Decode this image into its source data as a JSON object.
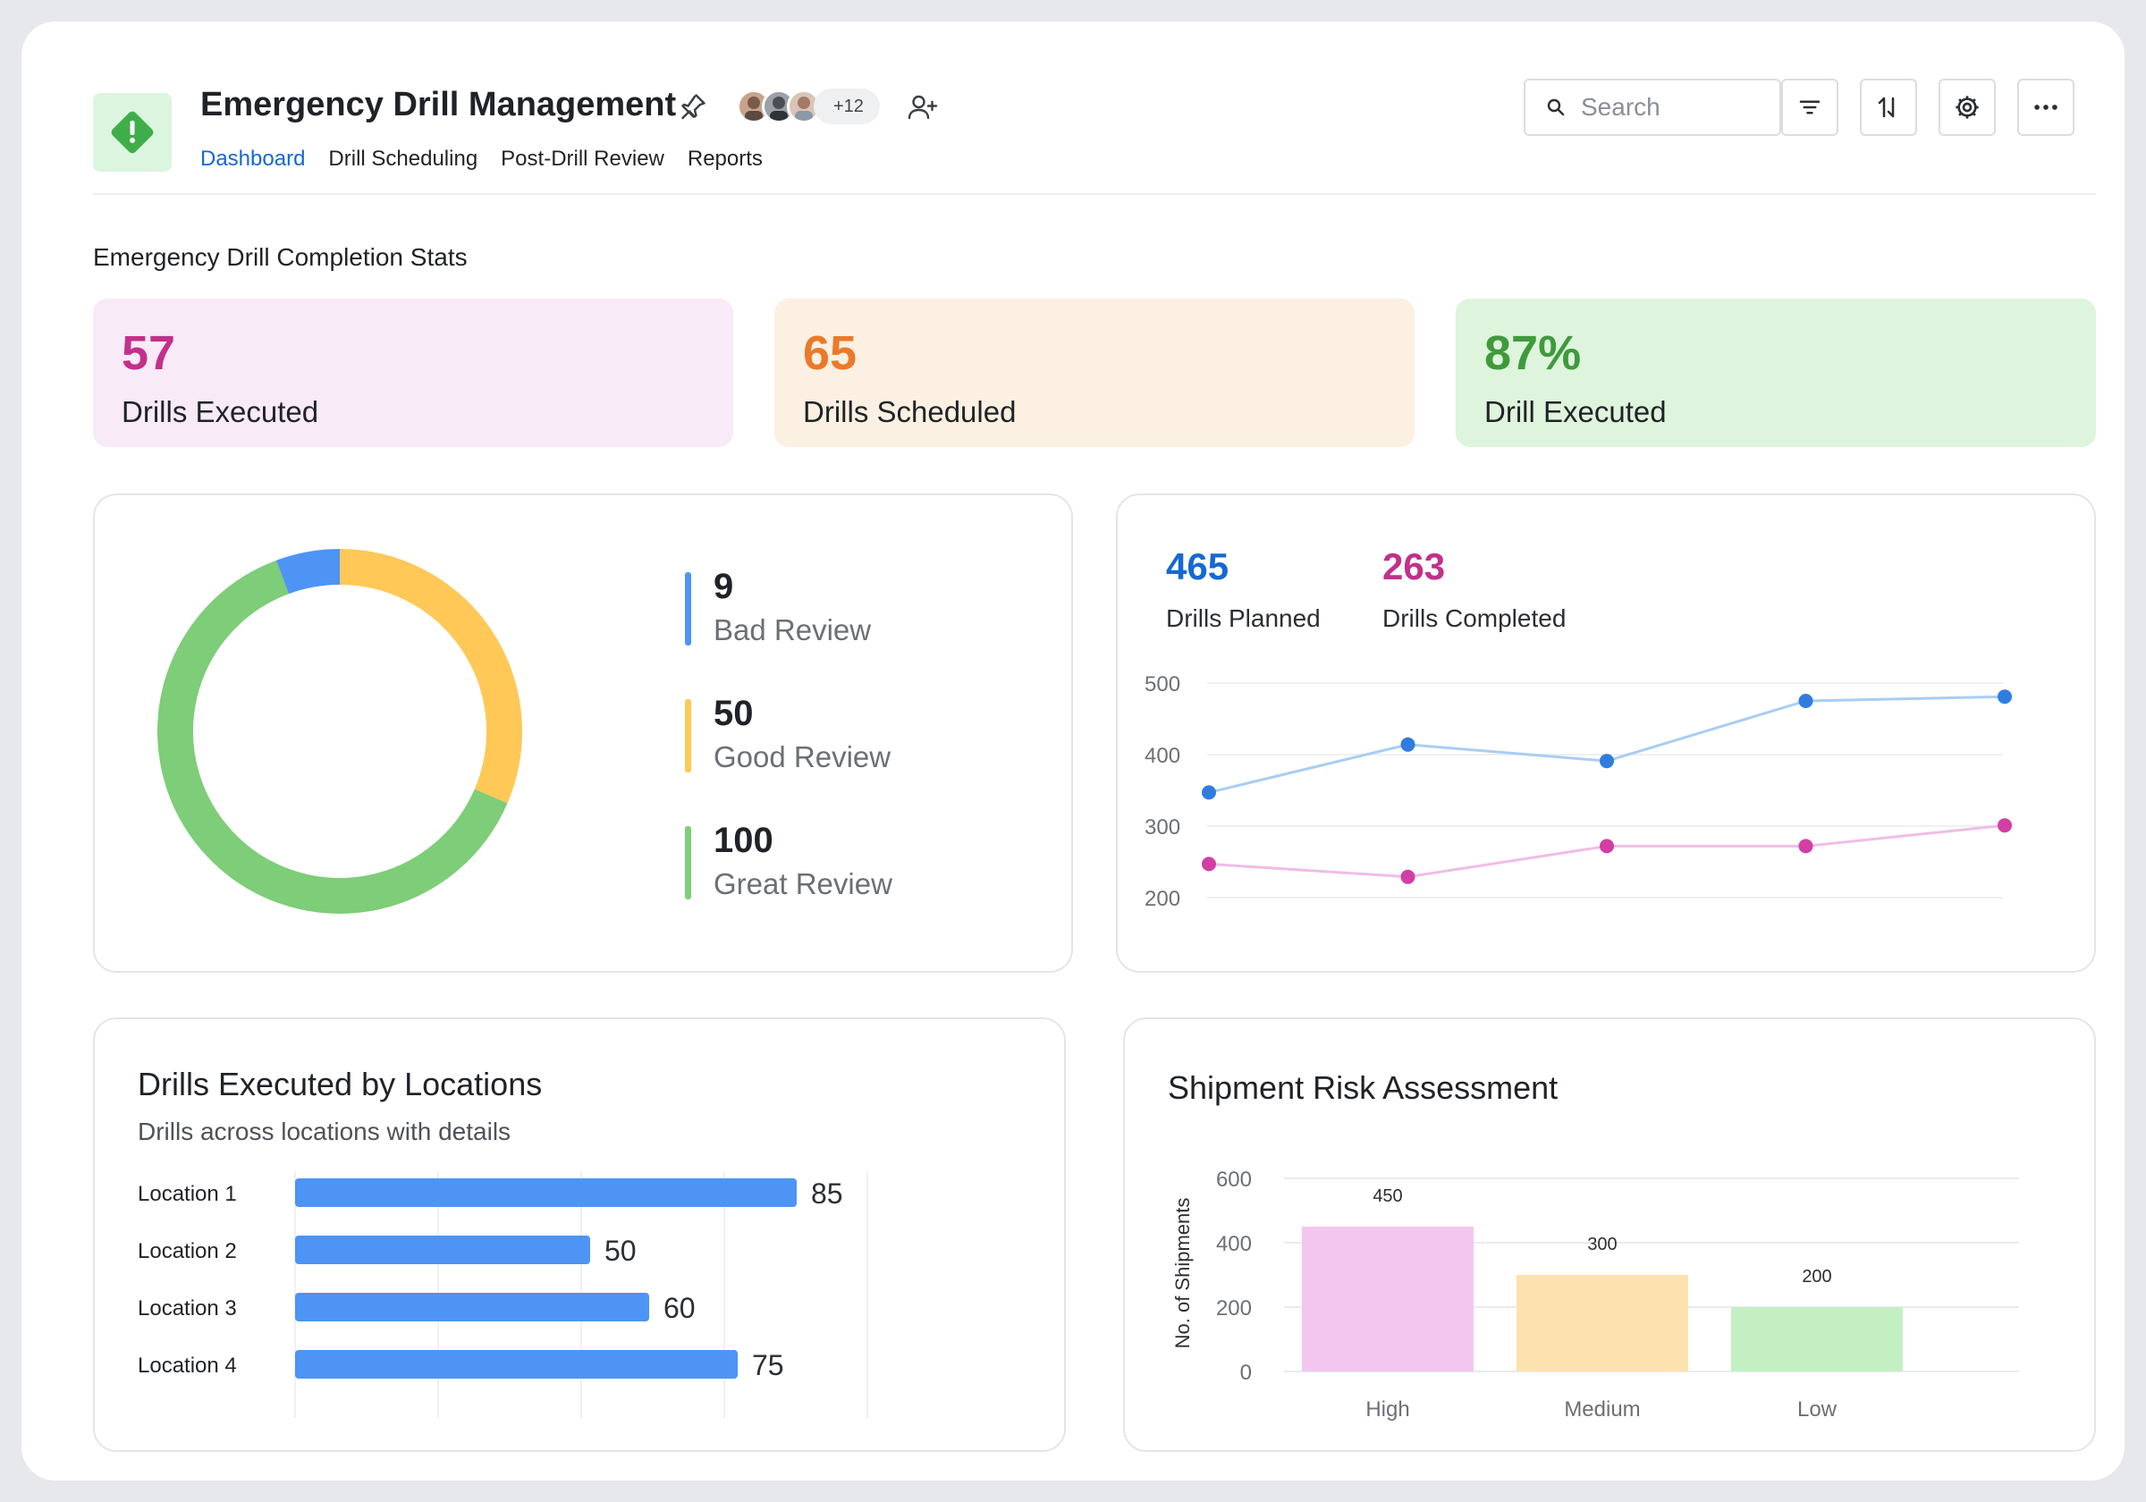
{
  "app": {
    "title": "Emergency Drill Management",
    "avatars_more": "+12",
    "tabs": [
      {
        "label": "Dashboard",
        "active": true
      },
      {
        "label": "Drill Scheduling",
        "active": false
      },
      {
        "label": "Post-Drill Review",
        "active": false
      },
      {
        "label": "Reports",
        "active": false
      }
    ],
    "search_placeholder": "Search",
    "toolbar_icons": [
      "filter-icon",
      "sort-icon",
      "settings-icon",
      "more-icon"
    ]
  },
  "stats_section": {
    "title": "Emergency Drill Completion Stats",
    "cards": [
      {
        "value": "57",
        "label": "Drills Executed",
        "color": "#c2308a",
        "bg": "#f8eaf7"
      },
      {
        "value": "65",
        "label": "Drills Scheduled",
        "color": "#ea7a2a",
        "bg": "#fbf0e1"
      },
      {
        "value": "87%",
        "label": "Drill Executed",
        "color": "#3f9a3c",
        "bg": "#def4dc"
      }
    ]
  },
  "review_panel": {
    "items": [
      {
        "value": "9",
        "label": "Bad Review",
        "color": "#4d94f5"
      },
      {
        "value": "50",
        "label": "Good Review",
        "color": "#ffc857"
      },
      {
        "value": "100",
        "label": "Great Review",
        "color": "#7ecd78"
      }
    ]
  },
  "drills_panel": {
    "planned": {
      "value": "465",
      "label": "Drills Planned",
      "color": "#1668d4"
    },
    "completed": {
      "value": "263",
      "label": "Drills Completed",
      "color": "#c2308a"
    }
  },
  "locations_panel": {
    "title": "Drills Executed by Locations",
    "subtitle": "Drills across locations with details"
  },
  "risk_panel": {
    "title": "Shipment Risk Assessment"
  },
  "chart_data": [
    {
      "type": "pie",
      "categories": [
        "Bad Review",
        "Good Review",
        "Great Review"
      ],
      "values": [
        9,
        50,
        100
      ],
      "colors": [
        "#4d94f5",
        "#ffc857",
        "#7ecd78"
      ]
    },
    {
      "type": "line",
      "x": [
        1,
        2,
        3,
        4,
        5
      ],
      "ylim": [
        200,
        500
      ],
      "yticks": [
        500,
        400,
        300,
        200
      ],
      "series": [
        {
          "values": [
            347,
            414,
            391,
            475,
            481
          ],
          "color": "#2f7de1",
          "line_color": "#a9cdf3"
        },
        {
          "values": [
            247,
            229,
            272,
            272,
            301
          ],
          "color": "#d13fa5",
          "line_color": "#efbde5"
        }
      ]
    },
    {
      "type": "bar",
      "orientation": "horizontal",
      "categories": [
        "Location 1",
        "Location 2",
        "Location 3",
        "Location 4"
      ],
      "values": [
        85,
        50,
        60,
        75
      ],
      "xlim": [
        0,
        125
      ],
      "color": "#4d94f5"
    },
    {
      "type": "bar",
      "categories": [
        "High",
        "Medium",
        "Low"
      ],
      "values": [
        450,
        300,
        200
      ],
      "colors": [
        "#f3c6ee",
        "#fde2af",
        "#c4efc3"
      ],
      "ylabel": "No. of Shipments",
      "ylim": [
        0,
        600
      ],
      "yticks": [
        600,
        400,
        200,
        0
      ]
    }
  ]
}
